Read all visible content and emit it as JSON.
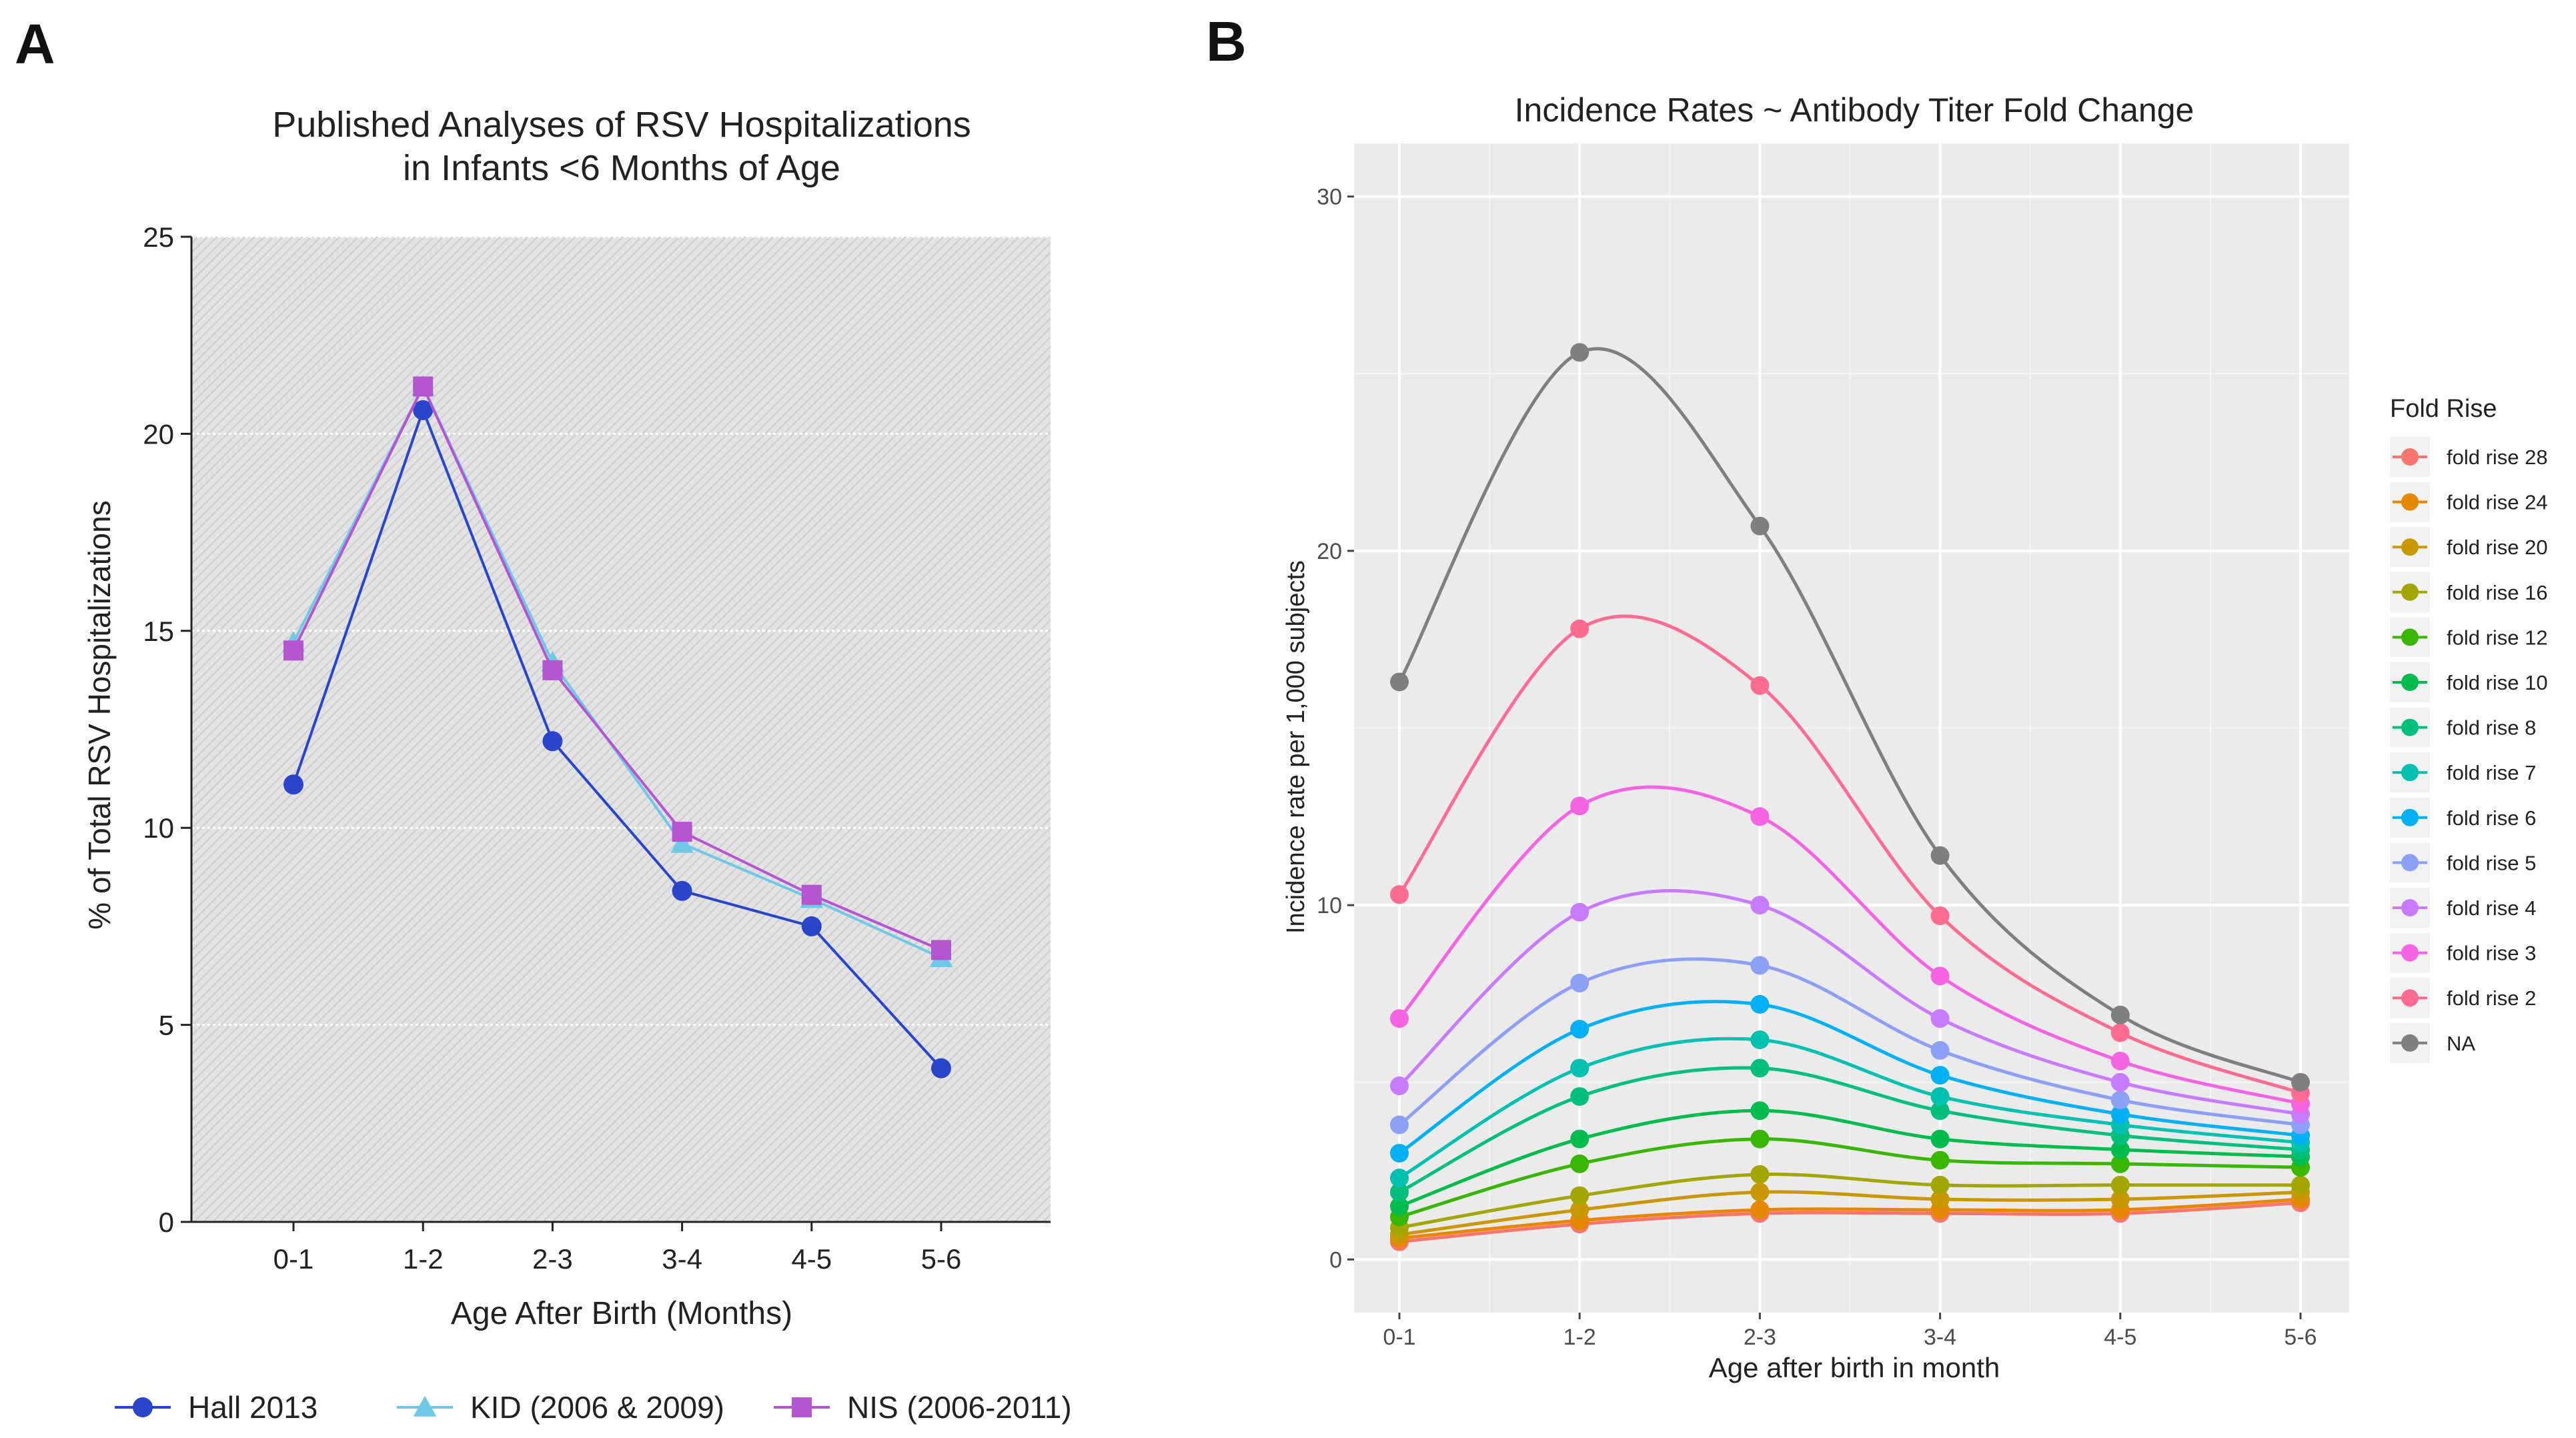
{
  "panel_labels": {
    "a": "A",
    "b": "B"
  },
  "chart_data": [
    {
      "type": "line",
      "panel": "A",
      "title_lines": [
        "Published Analyses of RSV Hospitalizations",
        "in Infants <6 Months of Age"
      ],
      "xlabel": "Age After Birth (Months)",
      "ylabel": "% of Total RSV Hospitalizations",
      "categories": [
        "0-1",
        "1-2",
        "2-3",
        "3-4",
        "4-5",
        "5-6"
      ],
      "ylim": [
        0,
        25
      ],
      "yticks": [
        0,
        5,
        10,
        15,
        20,
        25
      ],
      "legend_position": "bottom",
      "series": [
        {
          "name": "Hall 2013",
          "color": "#2a45c9",
          "marker": "circle",
          "values": [
            11.1,
            20.6,
            12.2,
            8.4,
            7.5,
            3.9
          ]
        },
        {
          "name": "KID (2006 & 2009)",
          "color": "#6fc8e6",
          "marker": "triangle",
          "values": [
            14.7,
            21.2,
            14.2,
            9.6,
            8.2,
            6.7
          ]
        },
        {
          "name": "NIS (2006-2011)",
          "color": "#b456d0",
          "marker": "square",
          "values": [
            14.5,
            21.2,
            14.0,
            9.9,
            8.3,
            6.9
          ]
        }
      ]
    },
    {
      "type": "line",
      "panel": "B",
      "title": "Incidence Rates ~ Antibody Titer Fold Change",
      "xlabel": "Age after birth in month",
      "ylabel": "Incidence rate per 1,000 subjects",
      "categories": [
        "0-1",
        "1-2",
        "2-3",
        "3-4",
        "4-5",
        "5-6"
      ],
      "ylim": [
        -1.5,
        31.5
      ],
      "yticks": [
        0,
        10,
        20,
        30
      ],
      "legend_title": "Fold Rise",
      "legend_position": "right",
      "series": [
        {
          "name": "fold rise 28",
          "color": "#f8766d",
          "values": [
            0.5,
            1.0,
            1.3,
            1.3,
            1.3,
            1.6
          ]
        },
        {
          "name": "fold rise 24",
          "color": "#e58700",
          "values": [
            0.6,
            1.1,
            1.4,
            1.4,
            1.4,
            1.7
          ]
        },
        {
          "name": "fold rise 20",
          "color": "#c99800",
          "values": [
            0.7,
            1.4,
            1.9,
            1.7,
            1.7,
            1.9
          ]
        },
        {
          "name": "fold rise 16",
          "color": "#a3a500",
          "values": [
            0.9,
            1.8,
            2.4,
            2.1,
            2.1,
            2.1
          ]
        },
        {
          "name": "fold rise 12",
          "color": "#39b600",
          "values": [
            1.2,
            2.7,
            3.4,
            2.8,
            2.7,
            2.6
          ]
        },
        {
          "name": "fold rise 10",
          "color": "#00bb4e",
          "values": [
            1.5,
            3.4,
            4.2,
            3.4,
            3.1,
            2.9
          ]
        },
        {
          "name": "fold rise 8",
          "color": "#00bf7d",
          "values": [
            1.9,
            4.6,
            5.4,
            4.2,
            3.5,
            3.1
          ]
        },
        {
          "name": "fold rise 7",
          "color": "#00c0af",
          "values": [
            2.3,
            5.4,
            6.2,
            4.6,
            3.8,
            3.3
          ]
        },
        {
          "name": "fold rise 6",
          "color": "#00b0f6",
          "values": [
            3.0,
            6.5,
            7.2,
            5.2,
            4.1,
            3.5
          ]
        },
        {
          "name": "fold rise 5",
          "color": "#8da0f5",
          "values": [
            3.8,
            7.8,
            8.3,
            5.9,
            4.5,
            3.8
          ]
        },
        {
          "name": "fold rise 4",
          "color": "#c77cff",
          "values": [
            4.9,
            9.8,
            10.0,
            6.8,
            5.0,
            4.1
          ]
        },
        {
          "name": "fold rise 3",
          "color": "#f564e3",
          "values": [
            6.8,
            12.8,
            12.5,
            8.0,
            5.6,
            4.4
          ]
        },
        {
          "name": "fold rise 2",
          "color": "#ff6c91",
          "values": [
            10.3,
            17.8,
            16.2,
            9.7,
            6.4,
            4.7
          ]
        },
        {
          "name": "NA",
          "color": "#7f7f7f",
          "values": [
            16.3,
            25.6,
            20.7,
            11.4,
            6.9,
            5.0
          ]
        }
      ]
    }
  ]
}
